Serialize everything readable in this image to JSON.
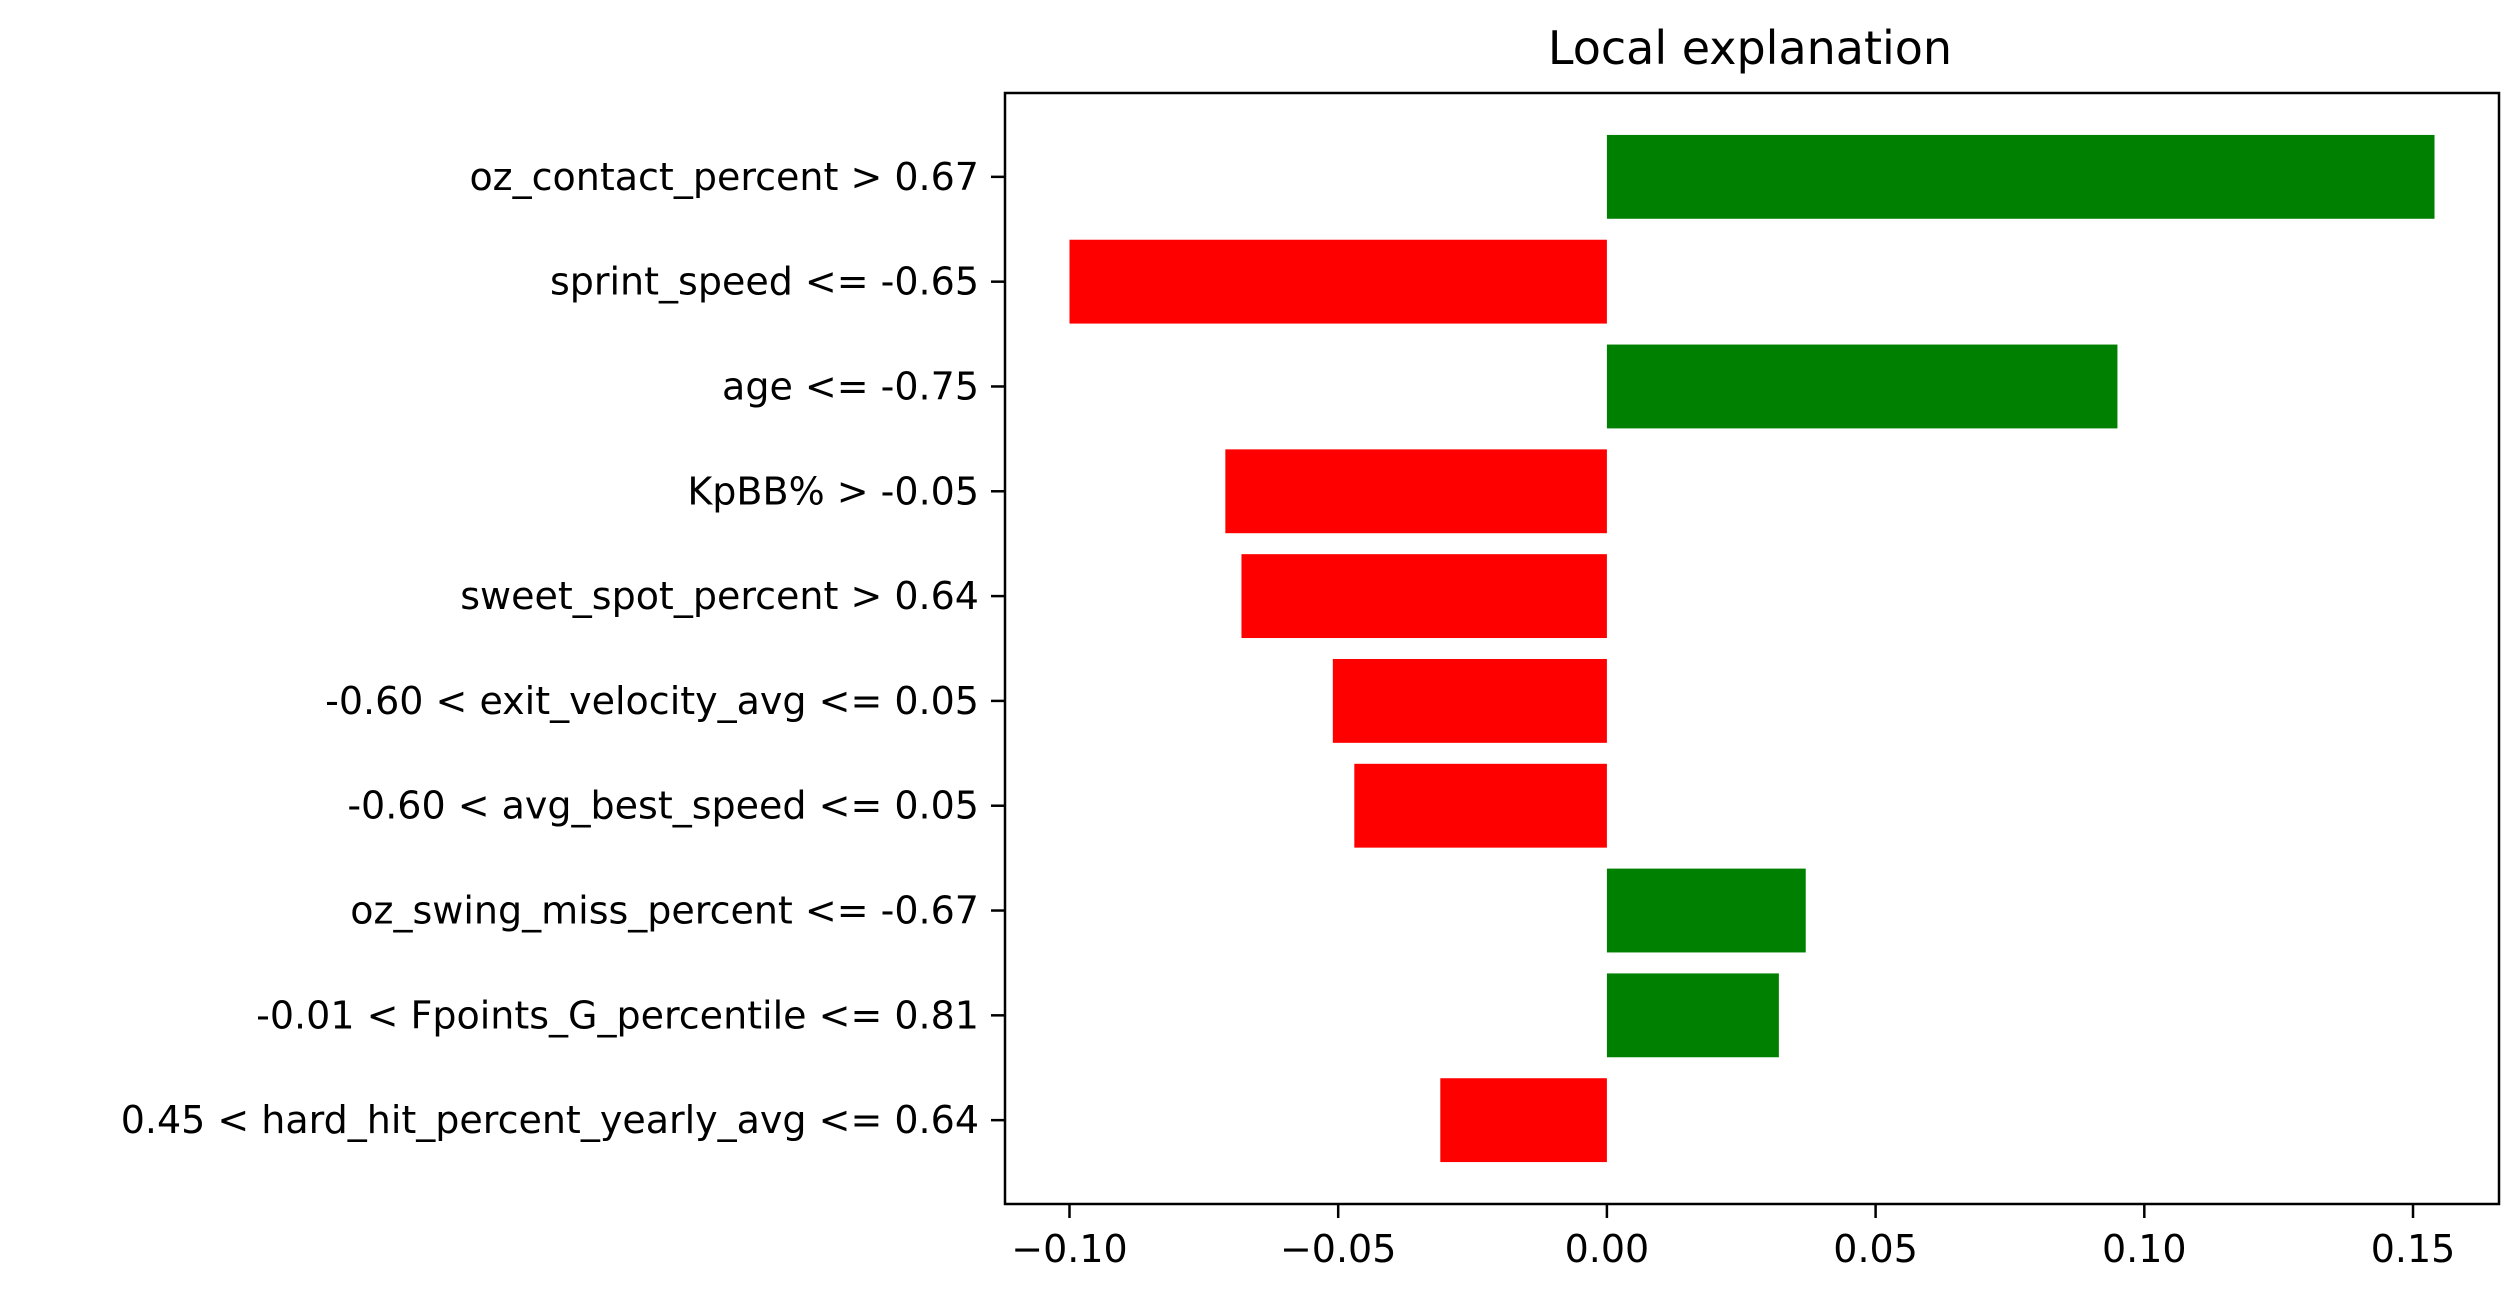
{
  "chart_data": {
    "type": "bar",
    "orientation": "horizontal",
    "title": "Local explanation",
    "xlabel": "",
    "ylabel": "",
    "categories": [
      "oz_contact_percent > 0.67",
      "sprint_speed <= -0.65",
      "age <= -0.75",
      "KpBB% > -0.05",
      "sweet_spot_percent > 0.64",
      "-0.60 < exit_velocity_avg <= 0.05",
      "-0.60 < avg_best_speed <= 0.05",
      "oz_swing_miss_percent <= -0.67",
      "-0.01 < Fpoints_G_percentile <= 0.81",
      "0.45 < hard_hit_percent_yearly_avg <= 0.64"
    ],
    "values": [
      0.154,
      -0.1,
      0.095,
      -0.071,
      -0.068,
      -0.051,
      -0.047,
      0.037,
      0.032,
      -0.031
    ],
    "xlim": [
      -0.112,
      0.166
    ],
    "xticks": [
      -0.1,
      -0.05,
      0.0,
      0.05,
      0.1,
      0.15
    ],
    "xtick_labels": [
      "−0.10",
      "−0.05",
      "0.00",
      "0.05",
      "0.10",
      "0.15"
    ],
    "colors": {
      "positive": "#008000",
      "negative": "#ff0000",
      "axes": "#000000"
    },
    "grid": false,
    "legend": "none"
  }
}
